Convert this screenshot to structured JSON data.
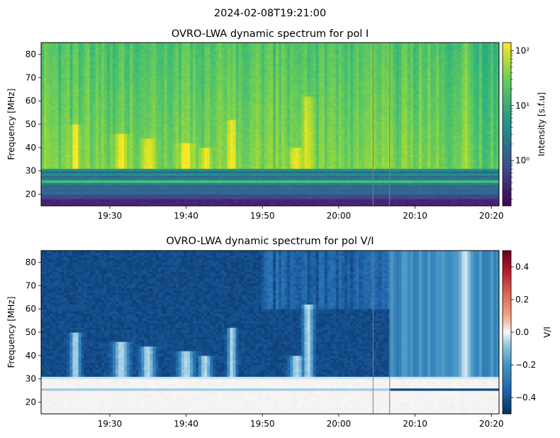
{
  "figure": {
    "suptitle": "2024-02-08T19:21:00"
  },
  "chart_data": [
    {
      "type": "heatmap",
      "title": "OVRO-LWA dynamic spectrum for pol I",
      "xlabel": "",
      "ylabel": "Frequency [MHz]",
      "x_start": "19:21",
      "x_end": "20:21",
      "x_tick_labels": [
        "19:30",
        "19:40",
        "19:50",
        "20:00",
        "20:10",
        "20:20"
      ],
      "x_tick_minutes_after_19": [
        30,
        40,
        50,
        60,
        70,
        80
      ],
      "ylim": [
        15,
        85
      ],
      "y_ticks": [
        20,
        30,
        40,
        50,
        60,
        70,
        80
      ],
      "colorbar": {
        "label": "Intensity [s.f.u]",
        "scale": "log",
        "colormap": "viridis",
        "range": [
          0.15,
          140
        ],
        "tick_labels": [
          "10⁰",
          "10¹",
          "10²"
        ],
        "tick_values": [
          1,
          10,
          100
        ]
      },
      "data_gap_lines": [
        "20:04:30",
        "20:06:40"
      ],
      "features": [
        {
          "time": "19:25",
          "intensity_note": "burst"
        },
        {
          "time": "19:32",
          "intensity_note": "burst"
        },
        {
          "time": "19:35",
          "intensity_note": "burst"
        },
        {
          "time": "19:40",
          "intensity_note": "burst"
        },
        {
          "time": "19:46",
          "intensity_note": "burst"
        },
        {
          "time": "19:54",
          "intensity_note": "burst"
        },
        {
          "time": "20:16",
          "intensity_note": "burst"
        }
      ]
    },
    {
      "type": "heatmap",
      "title": "OVRO-LWA dynamic spectrum for pol V/I",
      "xlabel": "",
      "ylabel": "Frequency [MHz]",
      "x_start": "19:21",
      "x_end": "20:21",
      "x_tick_labels": [
        "19:30",
        "19:40",
        "19:50",
        "20:00",
        "20:10",
        "20:20"
      ],
      "x_tick_minutes_after_19": [
        30,
        40,
        50,
        60,
        70,
        80
      ],
      "ylim": [
        15,
        85
      ],
      "y_ticks": [
        20,
        30,
        40,
        50,
        60,
        70,
        80
      ],
      "colorbar": {
        "label": "V/I",
        "scale": "linear",
        "colormap": "RdBu_r",
        "range": [
          -0.5,
          0.5
        ],
        "tick_labels": [
          "−0.4",
          "−0.2",
          "0.0",
          "0.2",
          "0.4"
        ],
        "tick_values": [
          -0.4,
          -0.2,
          0.0,
          0.2,
          0.4
        ]
      },
      "data_gap_lines": [
        "20:04:30",
        "20:06:40"
      ]
    }
  ]
}
